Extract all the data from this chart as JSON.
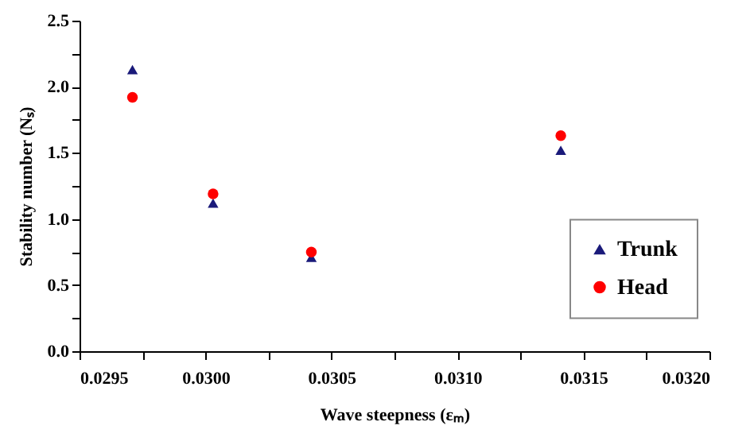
{
  "chart_data": {
    "type": "scatter",
    "xlabel": "Wave steepness (εₘ)",
    "ylabel": "Stability number (Nₛ)",
    "xlim": [
      0.0295,
      0.032
    ],
    "ylim": [
      0,
      2.5
    ],
    "xticks": [
      {
        "value": 0.0295,
        "label": "0.0295"
      },
      {
        "value": 0.02975,
        "label": null
      },
      {
        "value": 0.03,
        "label": "0.0300"
      },
      {
        "value": 0.03025,
        "label": null
      },
      {
        "value": 0.0305,
        "label": "0.0305"
      },
      {
        "value": 0.03075,
        "label": null
      },
      {
        "value": 0.031,
        "label": "0.0310"
      },
      {
        "value": 0.03125,
        "label": null
      },
      {
        "value": 0.0315,
        "label": "0.0315"
      },
      {
        "value": 0.03175,
        "label": null
      },
      {
        "value": 0.032,
        "label": "0.0320"
      }
    ],
    "yticks": [
      {
        "value": 0,
        "label": "0.0"
      },
      {
        "value": 0.25,
        "label": null
      },
      {
        "value": 0.5,
        "label": "0.5"
      },
      {
        "value": 0.75,
        "label": null
      },
      {
        "value": 1,
        "label": "1.0"
      },
      {
        "value": 1.25,
        "label": null
      },
      {
        "value": 1.5,
        "label": "1.5"
      },
      {
        "value": 1.75,
        "label": null
      },
      {
        "value": 2,
        "label": "2.0"
      },
      {
        "value": 2.25,
        "label": null
      },
      {
        "value": 2.5,
        "label": "2.5"
      }
    ],
    "grid": false,
    "legend": "right",
    "series": [
      {
        "name": "Trunk",
        "color": "#1a1a7a",
        "marker": "triangle",
        "x": [
          0.02971,
          0.03003,
          0.03042,
          0.03141
        ],
        "values": [
          2.13,
          1.12,
          0.71,
          1.52
        ]
      },
      {
        "name": "Head",
        "color": "#ff0000",
        "marker": "circle",
        "x": [
          0.02971,
          0.03003,
          0.03042,
          0.03141
        ],
        "values": [
          1.92,
          1.19,
          0.75,
          1.63
        ]
      }
    ]
  }
}
